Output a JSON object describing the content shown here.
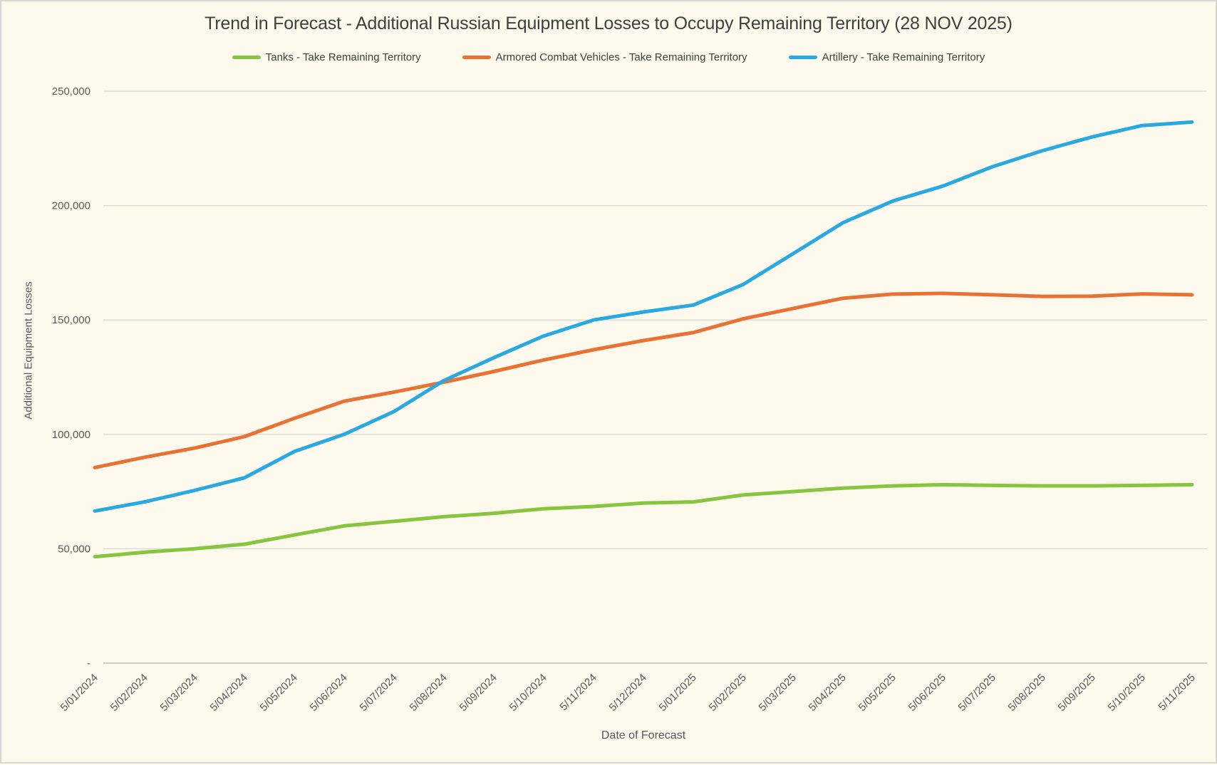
{
  "title": "Trend in Forecast - Additional Russian Equipment Losses to Occupy Remaining Territory (28 NOV 2025)",
  "colors": {
    "background": "#FDF9EC",
    "frame_border": "#D8D6D0",
    "gridline": "#DBD9D3",
    "axis_line": "#C2C0BB",
    "title_text": "#3F3F3F",
    "tick_text": "#595959",
    "tanks_green": "#87C540",
    "acv_orange": "#E97132",
    "artillery_blue": "#29A9E1"
  },
  "chart_data": {
    "type": "line",
    "title": "Trend in Forecast - Additional Russian Equipment Losses to Occupy Remaining Territory (28 NOV 2025)",
    "xlabel": "Date of Forecast",
    "ylabel": "Additional Equipment Losses",
    "ylim": [
      0,
      250000
    ],
    "y_tick_step": 50000,
    "grid": "horizontal",
    "legend_position": "top",
    "y_ticks": [
      {
        "value": 0,
        "label": "-"
      },
      {
        "value": 50000,
        "label": "50,000"
      },
      {
        "value": 100000,
        "label": "100,000"
      },
      {
        "value": 150000,
        "label": "150,000"
      },
      {
        "value": 200000,
        "label": "200,000"
      },
      {
        "value": 250000,
        "label": "250,000"
      }
    ],
    "categories": [
      "5/01/2024",
      "5/02/2024",
      "5/03/2024",
      "5/04/2024",
      "5/05/2024",
      "5/06/2024",
      "5/07/2024",
      "5/08/2024",
      "5/09/2024",
      "5/10/2024",
      "5/11/2024",
      "5/12/2024",
      "5/01/2025",
      "5/02/2025",
      "5/03/2025",
      "5/04/2025",
      "5/05/2025",
      "5/06/2025",
      "5/07/2025",
      "5/08/2025",
      "5/09/2025",
      "5/10/2025",
      "5/11/2025"
    ],
    "series": [
      {
        "name": "Tanks - Take Remaining Territory",
        "slug": "tanks",
        "color": "#87C540",
        "values": [
          46500,
          48500,
          50000,
          52000,
          56000,
          60000,
          62000,
          64000,
          65500,
          67500,
          68500,
          70000,
          70500,
          73500,
          75000,
          76500,
          77500,
          78000,
          77700,
          77500,
          77500,
          77700,
          78000
        ]
      },
      {
        "name": "Armored Combat Vehicles - Take Remaining Territory",
        "slug": "acv",
        "color": "#E97132",
        "values": [
          85500,
          90000,
          94000,
          99000,
          107000,
          114500,
          118500,
          122800,
          127500,
          132500,
          137000,
          141000,
          144500,
          150500,
          155000,
          159500,
          161300,
          161600,
          161000,
          160300,
          160400,
          161400,
          161000
        ]
      },
      {
        "name": "Artillery - Take Remaining Territory",
        "slug": "artillery",
        "color": "#29A9E1",
        "values": [
          66500,
          70500,
          75500,
          81000,
          92500,
          100000,
          110000,
          123500,
          133500,
          143000,
          150000,
          153500,
          156500,
          165500,
          179000,
          192500,
          202000,
          208500,
          217000,
          224000,
          230000,
          235000,
          236500
        ]
      }
    ]
  }
}
